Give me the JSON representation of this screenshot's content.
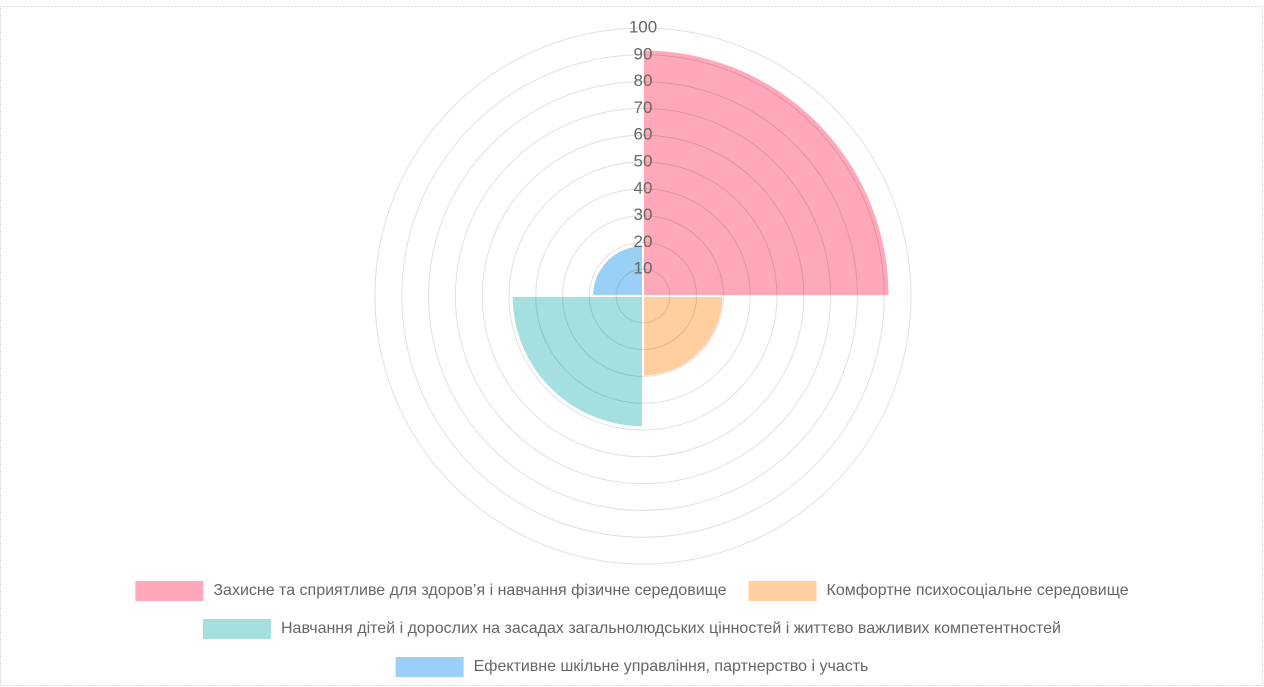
{
  "chart_data": {
    "type": "polarArea",
    "categories": [
      "Захисне та сприятливе для здоров’я і навчання фізичне середовище",
      "Комфортне психосоціальне середовище",
      "Навчання дітей і дорослих на засадах загальнолюдських цінностей і життєво важливих компетентностей",
      "Ефективне шкільне управління, партнерство і участь"
    ],
    "values": [
      92,
      30,
      49,
      19
    ],
    "colors": [
      "#ffa8b9",
      "#ffcf9f",
      "#a5dfdf",
      "#9ad0f5"
    ],
    "rlim": [
      0,
      100
    ],
    "rticks": [
      10,
      20,
      30,
      40,
      50,
      60,
      70,
      80,
      90,
      100
    ],
    "grid": true,
    "legend": "bottom"
  }
}
